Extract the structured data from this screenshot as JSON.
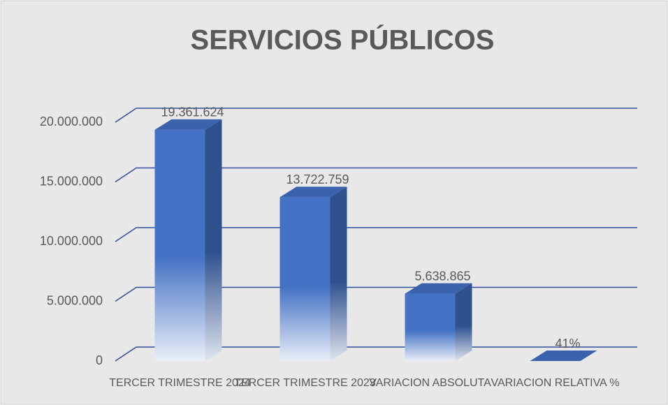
{
  "chart_data": {
    "type": "bar3d",
    "title": "SERVICIOS PÚBLICOS",
    "categories": [
      "TERCER TRIMESTRE 2024",
      "TERCER TRIMESTRE 2023",
      "VARIACION ABSOLUTA",
      "VARIACION RELATIVA %"
    ],
    "values": [
      19361624,
      13722759,
      5638865,
      0.41
    ],
    "value_labels": [
      "19.361.624",
      "13.722.759",
      "5.638.865",
      "41%"
    ],
    "color": "#4472c4",
    "ylim": [
      0,
      20000000
    ],
    "yticks": [
      0,
      {
        "value": 5000000,
        "label": "5.000.000"
      },
      {
        "value": 10000000,
        "label": "10.000.000"
      },
      {
        "value": 15000000,
        "label": "15.000.000"
      },
      {
        "value": 20000000,
        "label": "20.000.000"
      }
    ],
    "grid": true
  }
}
